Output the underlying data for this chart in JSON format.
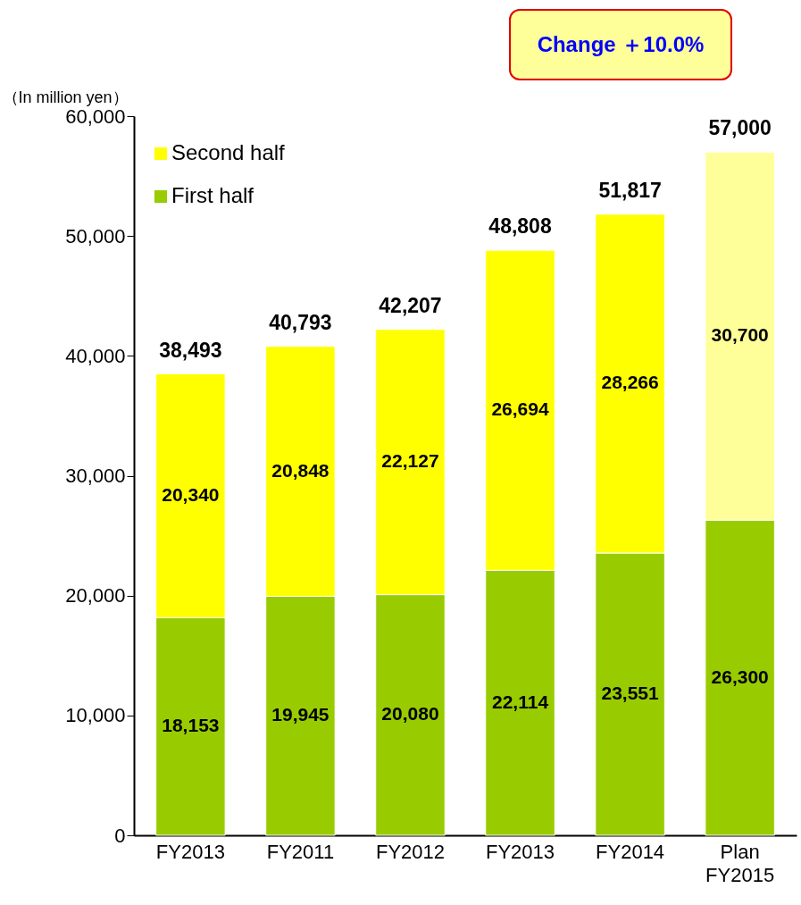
{
  "chart_data": {
    "type": "bar",
    "stacked": true,
    "ylabel": "（In million yen）",
    "categories": [
      "FY2013",
      "FY2011",
      "FY2012",
      "FY2013",
      "FY2014",
      "Plan FY2015"
    ],
    "series": [
      {
        "name": "First half",
        "color": "#99cc00",
        "values": [
          18153,
          19945,
          20080,
          22114,
          23551,
          26300
        ],
        "value_labels": [
          "18,153",
          "19,945",
          "20,080",
          "22,114",
          "23,551",
          "26,300"
        ]
      },
      {
        "name": "Second half",
        "color": "#ffff00",
        "colors": [
          "#ffff00",
          "#ffff00",
          "#ffff00",
          "#ffff00",
          "#ffff00",
          "#ffff99"
        ],
        "values": [
          20340,
          20848,
          22127,
          26694,
          28266,
          30700
        ],
        "value_labels": [
          "20,340",
          "20,848",
          "22,127",
          "26,694",
          "28,266",
          "30,700"
        ]
      }
    ],
    "totals": [
      "38,493",
      "40,793",
      "42,207",
      "48,808",
      "51,817",
      "57,000"
    ],
    "ylim": [
      0,
      60000
    ],
    "yticks": [
      {
        "value": 0,
        "label": "0"
      },
      {
        "value": 10000,
        "label": "10,000"
      },
      {
        "value": 20000,
        "label": "20,000"
      },
      {
        "value": 30000,
        "label": "30,000"
      },
      {
        "value": 40000,
        "label": "40,000"
      },
      {
        "value": 50000,
        "label": "50,000"
      },
      {
        "value": 60000,
        "label": "60,000"
      }
    ],
    "annotations": [
      "Change ＋10.0%"
    ],
    "legend": "top left",
    "grid": false
  }
}
